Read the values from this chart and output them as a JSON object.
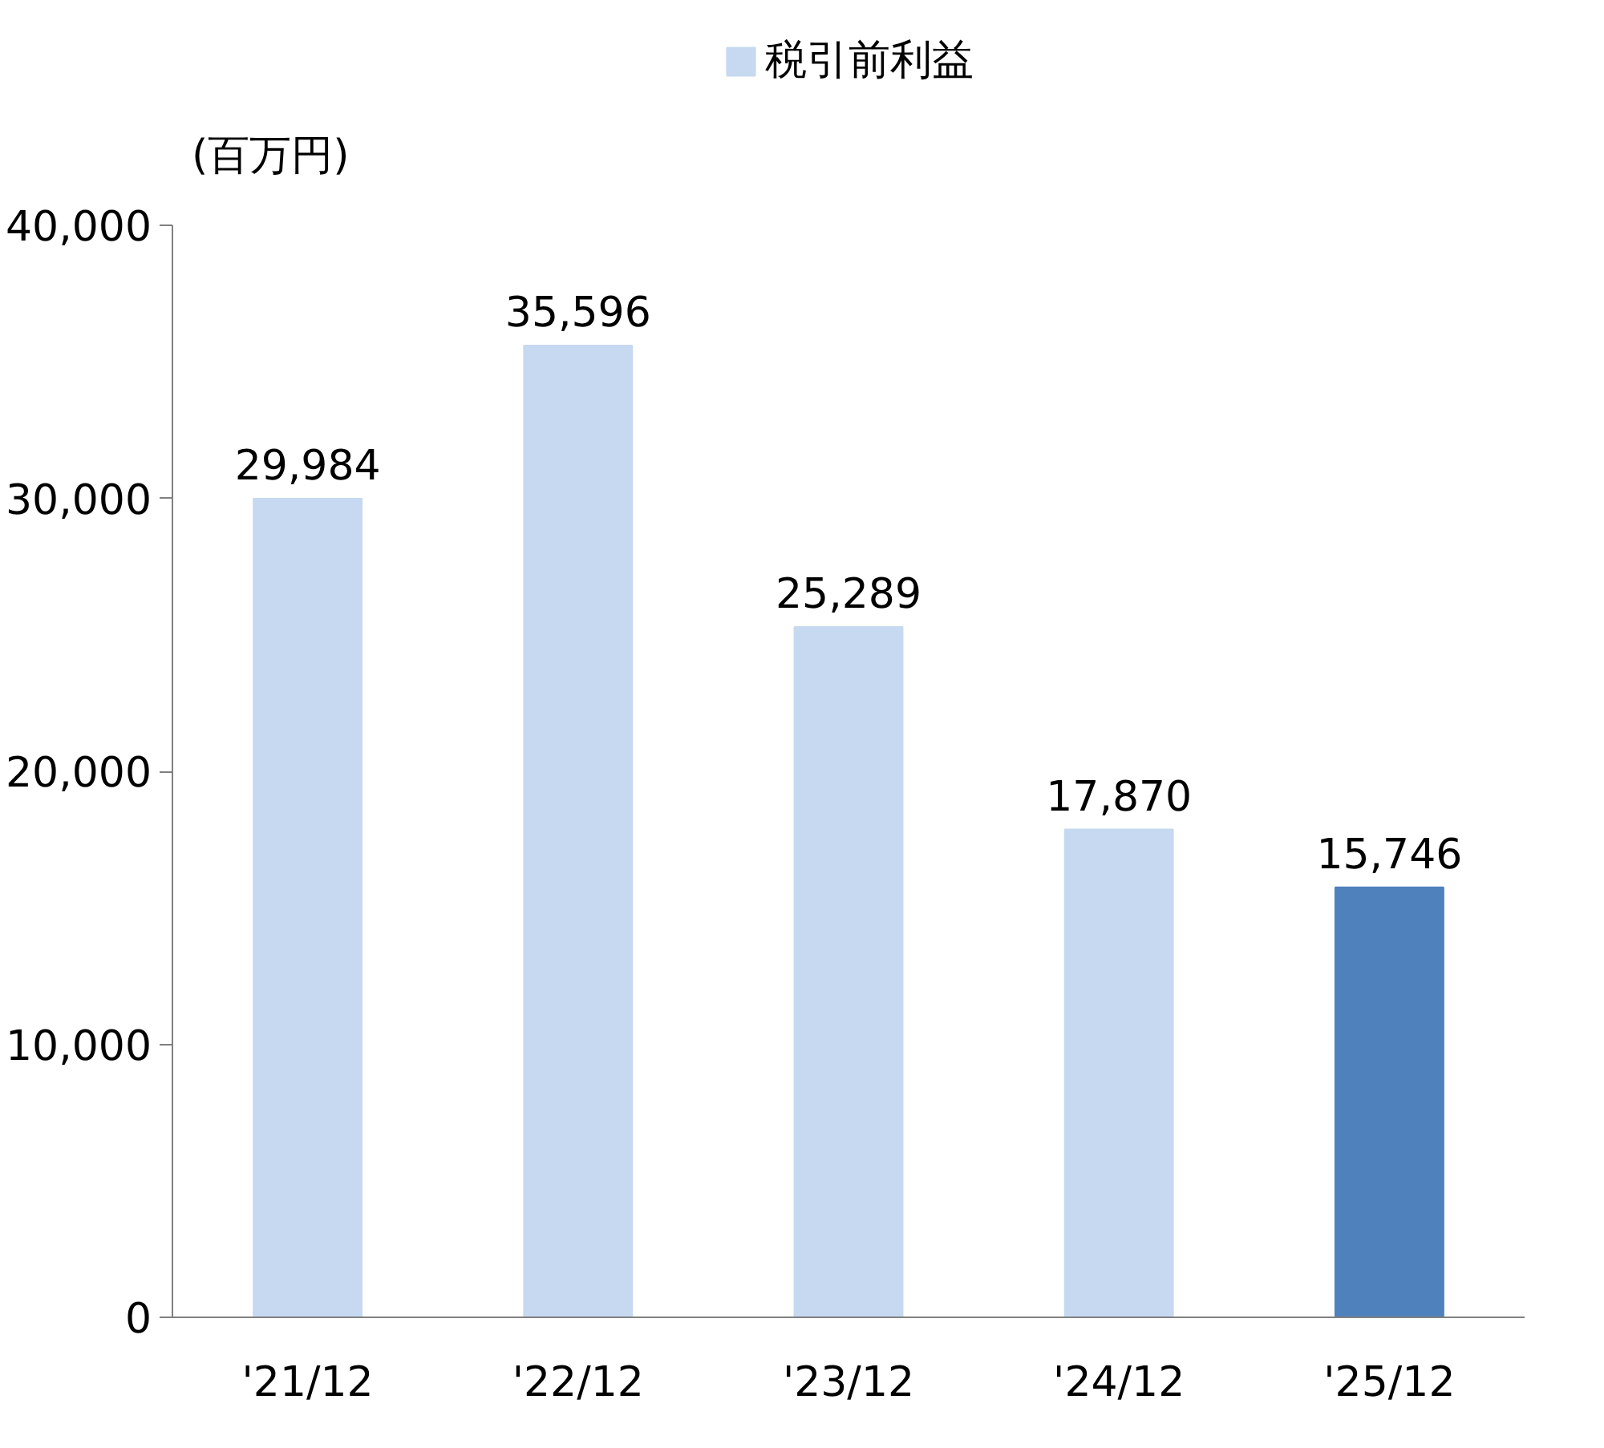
{
  "chart_data": {
    "type": "bar",
    "ylabel": "(百万円)",
    "categories": [
      "'21/12",
      "'22/12",
      "'23/12",
      "'24/12",
      "'25/12"
    ],
    "series": [
      {
        "name": "税引前利益",
        "colors": [
          "#c6d9f0",
          "#c6d9f0",
          "#c6d9f0",
          "#c6d9f0",
          "#4f81bd"
        ],
        "values": [
          29984,
          35596,
          25289,
          17870,
          15746
        ],
        "value_labels": [
          "29,984",
          "35,596",
          "25,289",
          "17,870",
          "15,746"
        ]
      }
    ],
    "ylim": [
      0,
      40000
    ],
    "yticks": [
      {
        "value": 0,
        "label": "0"
      },
      {
        "value": 10000,
        "label": "10,000"
      },
      {
        "value": 20000,
        "label": "20,000"
      },
      {
        "value": 30000,
        "label": "30,000"
      },
      {
        "value": 40000,
        "label": "40,000"
      }
    ],
    "grid": false,
    "legend": "top"
  }
}
